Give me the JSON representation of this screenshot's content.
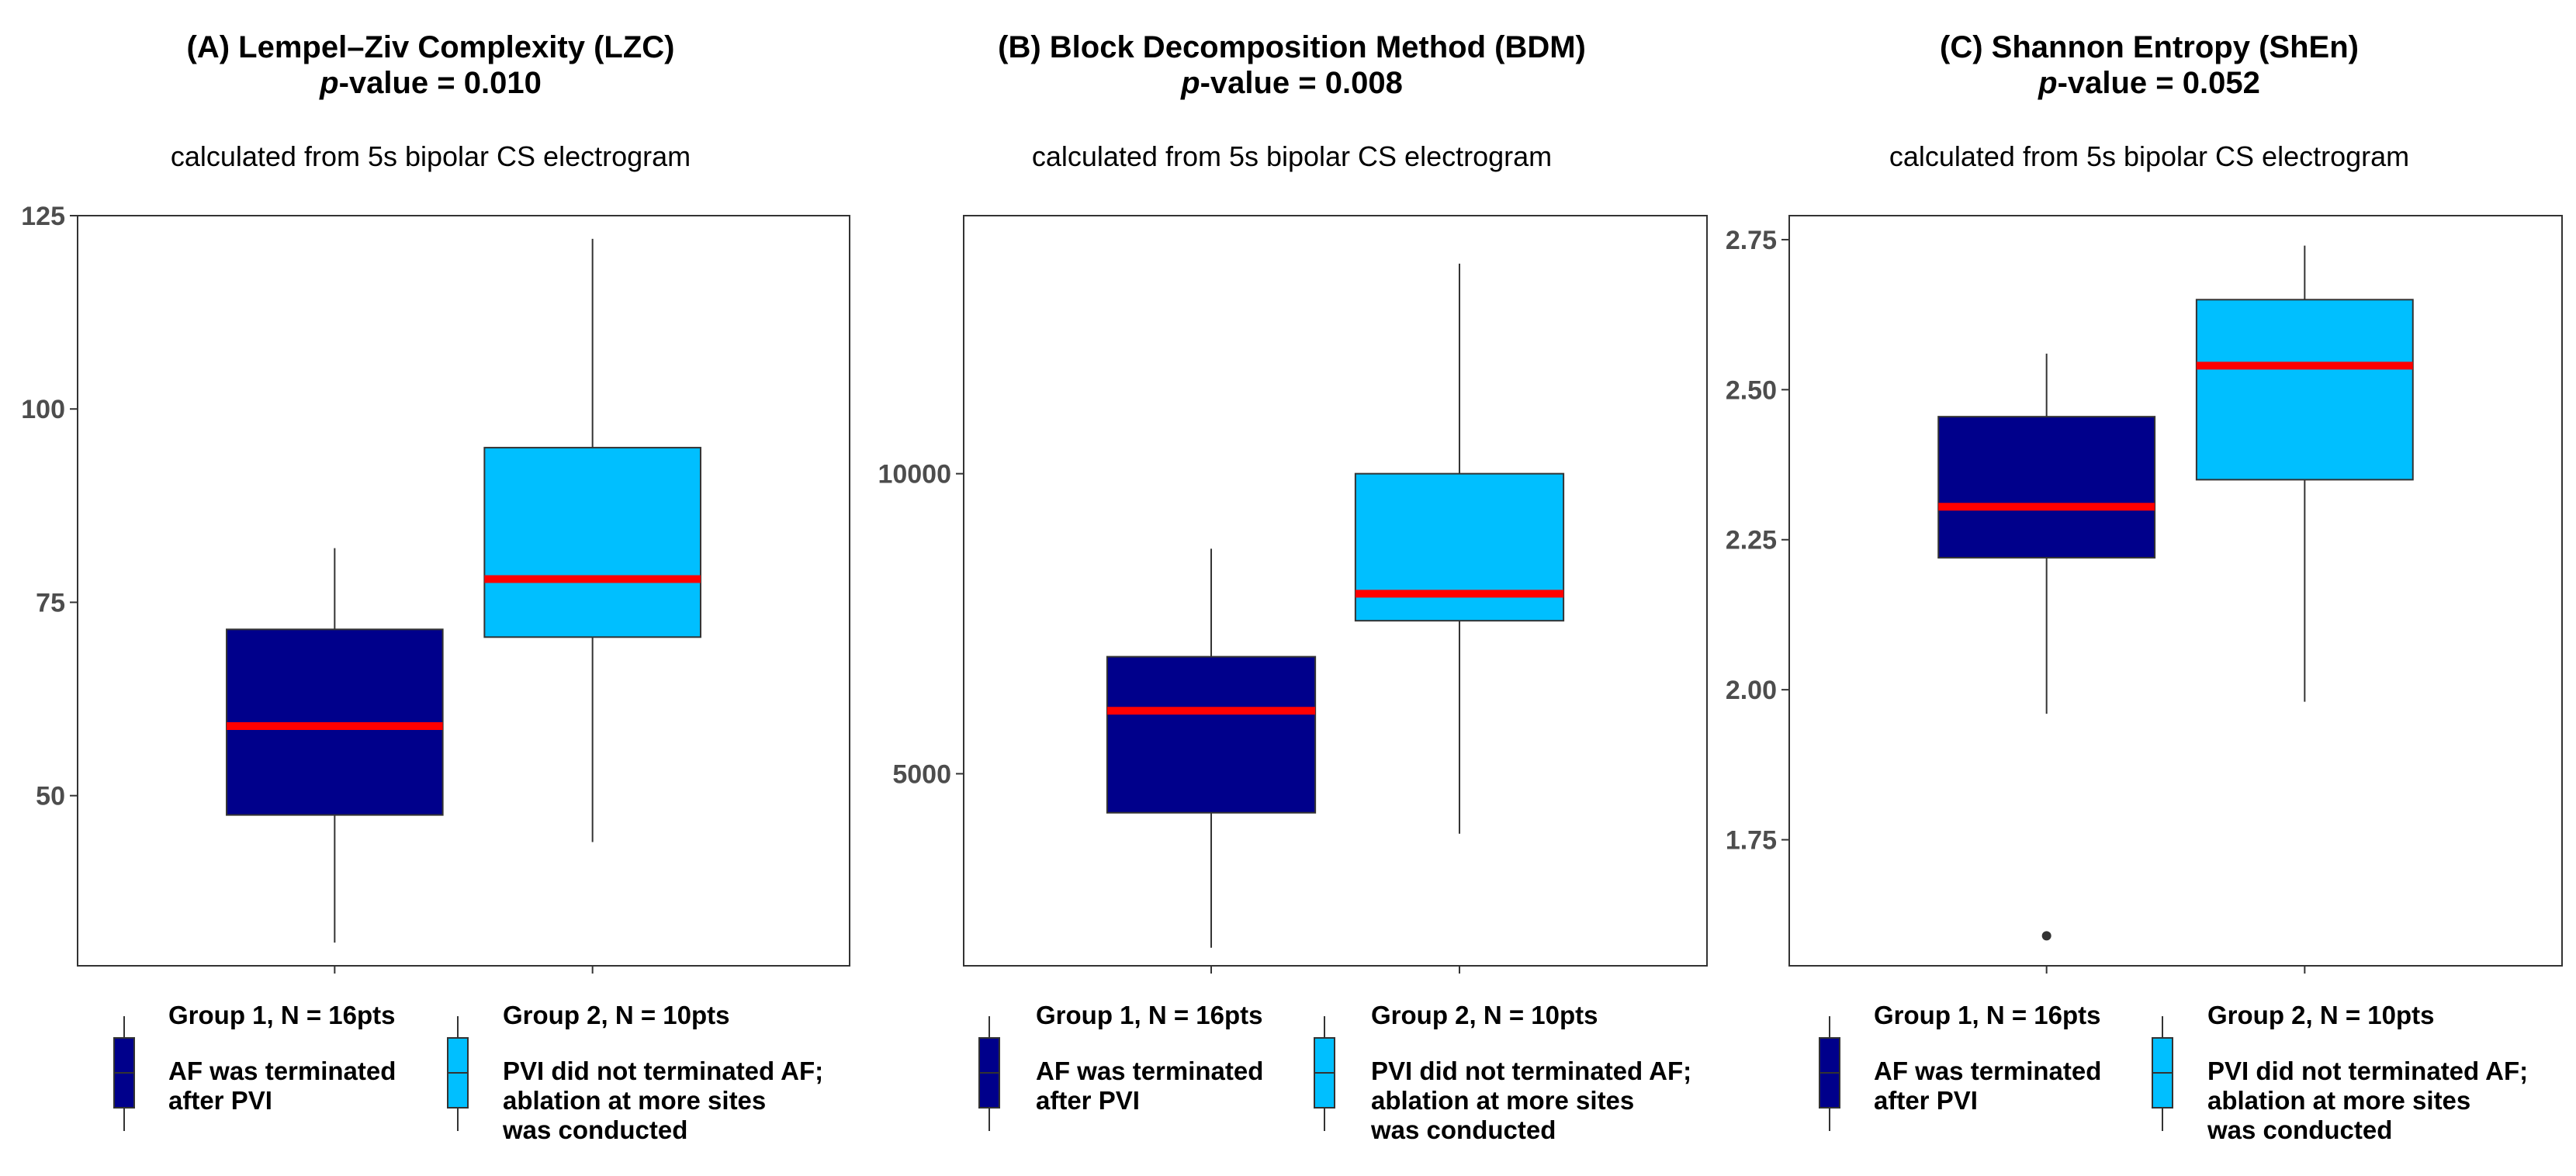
{
  "chart_data": [
    {
      "type": "box",
      "title": "(A)  Lempel–Ziv Complexity (LZC)",
      "pvalue_label": "p",
      "pvalue_text": "-value =  0.010",
      "subtitle": "calculated from 5s bipolar CS electrogram",
      "ylim": [
        28,
        125
      ],
      "yticks": [
        50,
        75,
        100,
        125
      ],
      "ytick_labels": [
        "50",
        "75",
        "100",
        "125"
      ],
      "groups": [
        {
          "name": "Group 1",
          "min": 31,
          "q1": 47.5,
          "median": 59,
          "q3": 71.5,
          "max": 82,
          "outliers": []
        },
        {
          "name": "Group 2",
          "min": 44,
          "q1": 70.5,
          "median": 78,
          "q3": 95,
          "max": 122,
          "outliers": []
        }
      ]
    },
    {
      "type": "box",
      "title": "(B)  Block Decomposition Method (BDM)",
      "pvalue_label": "p",
      "pvalue_text": "-value = 0.008",
      "subtitle": "calculated from 5s bipolar CS electrogram",
      "ylim": [
        1800,
        14300
      ],
      "yticks": [
        5000,
        10000
      ],
      "ytick_labels": [
        "5000",
        "10000"
      ],
      "groups": [
        {
          "name": "Group 1",
          "min": 2100,
          "q1": 4350,
          "median": 6050,
          "q3": 6950,
          "max": 8750,
          "outliers": []
        },
        {
          "name": "Group 2",
          "min": 4000,
          "q1": 7550,
          "median": 8000,
          "q3": 10000,
          "max": 13500,
          "outliers": []
        }
      ]
    },
    {
      "type": "box",
      "title": "(C)  Shannon Entropy (ShEn)",
      "pvalue_label": "p",
      "pvalue_text": "-value = 0.052",
      "subtitle": "calculated from 5s bipolar CS electrogram",
      "ylim": [
        1.54,
        2.79
      ],
      "yticks": [
        1.75,
        2.0,
        2.25,
        2.5,
        2.75
      ],
      "ytick_labels": [
        "1.75",
        "2.00",
        "2.25",
        "2.50",
        "2.75"
      ],
      "groups": [
        {
          "name": "Group 1",
          "min": 1.96,
          "q1": 2.22,
          "median": 2.305,
          "q3": 2.455,
          "max": 2.56,
          "outliers": [
            1.59
          ]
        },
        {
          "name": "Group 2",
          "min": 1.98,
          "q1": 2.35,
          "median": 2.54,
          "q3": 2.65,
          "max": 2.74,
          "outliers": []
        }
      ]
    }
  ],
  "legend": {
    "group1": {
      "heading": "Group 1, N = 16pts",
      "description": "AF was terminated\nafter PVI"
    },
    "group2": {
      "heading": "Group 2, N = 10pts",
      "description": "PVI did not terminated AF;\nablation at more sites\nwas conducted"
    }
  },
  "colors": {
    "group1_fill": "#00008B",
    "group2_fill": "#00BFFF",
    "median": "#FF0000",
    "axis_text": "#4D4D4D"
  }
}
